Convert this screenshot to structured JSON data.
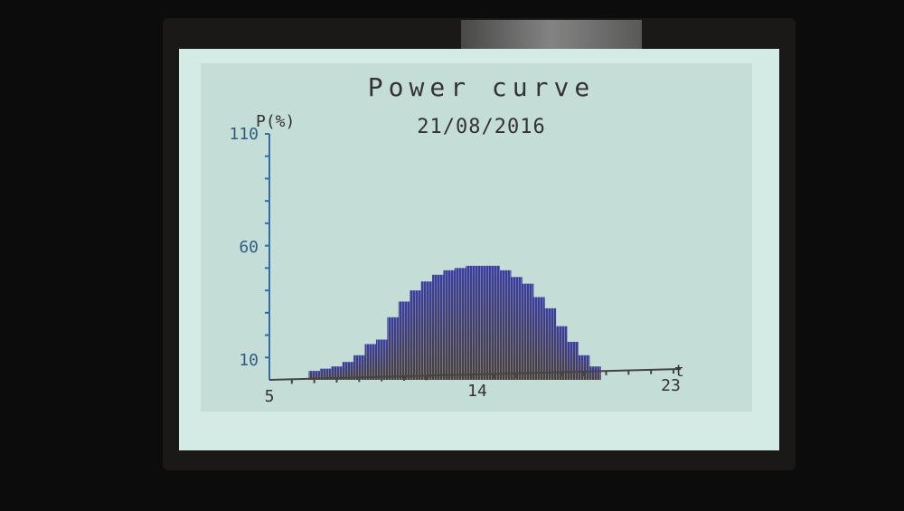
{
  "chart_data": {
    "type": "bar",
    "title": "Power curve",
    "subtitle": "21/08/2016",
    "ylabel": "P(%)",
    "xlabel": "t",
    "xlim": [
      5,
      23
    ],
    "ylim": [
      0,
      110
    ],
    "y_tick_labels": [
      "10",
      "60",
      "110"
    ],
    "x_tick_labels": [
      "5",
      "14",
      "23"
    ],
    "grid": false,
    "x": [
      7,
      7.5,
      8,
      8.5,
      9,
      9.5,
      10,
      10.5,
      11,
      11.5,
      12,
      12.5,
      13,
      13.5,
      14,
      14.5,
      15,
      15.5,
      16,
      16.5,
      17,
      17.5,
      18,
      18.5,
      19,
      19.5
    ],
    "values": [
      4,
      5,
      6,
      8,
      11,
      16,
      18,
      28,
      35,
      40,
      44,
      47,
      49,
      50,
      51,
      51,
      51,
      49,
      46,
      43,
      37,
      32,
      24,
      17,
      11,
      6
    ],
    "colors": {
      "fill_top": "#3b3d9e",
      "fill_bottom": "#4a403c",
      "axis": "#2f6fa8",
      "background": "#d3ebe4"
    }
  }
}
